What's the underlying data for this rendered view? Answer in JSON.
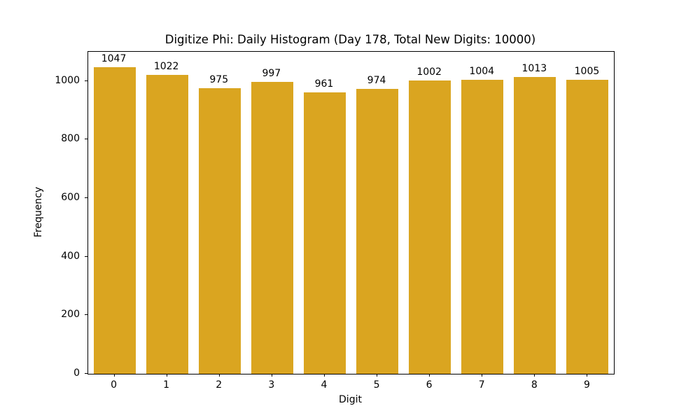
{
  "chart_data": {
    "type": "bar",
    "title": "Digitize Phi: Daily Histogram (Day 178, Total New Digits: 10000)",
    "categories": [
      "0",
      "1",
      "2",
      "3",
      "4",
      "5",
      "6",
      "7",
      "8",
      "9"
    ],
    "values": [
      1047,
      1022,
      975,
      997,
      961,
      974,
      1002,
      1004,
      1013,
      1005
    ],
    "bar_labels": [
      "1047",
      "1022",
      "975",
      "997",
      "961",
      "974",
      "1002",
      "1004",
      "1013",
      "1005"
    ],
    "xlabel": "Digit",
    "ylabel": "Frequency",
    "ylim": [
      0,
      1100
    ],
    "yticks": [
      0,
      200,
      400,
      600,
      800,
      1000
    ],
    "bar_color": "#DAA520",
    "background_color": "#FFFFFF",
    "grid": false,
    "legend": null,
    "bar_width_fraction": 0.8
  }
}
